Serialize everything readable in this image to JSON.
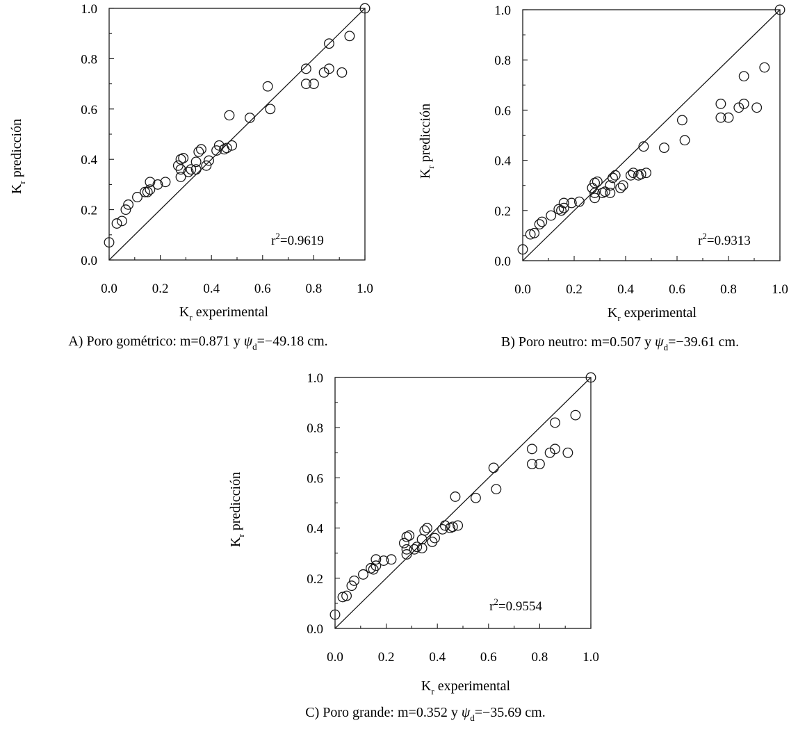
{
  "chart_data": [
    {
      "type": "scatter",
      "id": "A",
      "xlabel": {
        "main": "K",
        "sub": "r",
        "rest": " experimental"
      },
      "ylabel": {
        "main": "K",
        "sub": "r",
        "rest": " predicción"
      },
      "xlim": [
        0,
        1
      ],
      "ylim": [
        0,
        1
      ],
      "xticks": [
        "0.0",
        "0.2",
        "0.4",
        "0.6",
        "0.8",
        "1.0"
      ],
      "yticks": [
        "0.0",
        "0.2",
        "0.4",
        "0.6",
        "0.8",
        "1.0"
      ],
      "reference_line": "y = x",
      "annotation": {
        "pre": "r",
        "sup": "2",
        "post": "=0.9619"
      },
      "caption": {
        "pre": "A) Poro gométrico: m=0.871 y ",
        "symbol": "ψ",
        "sub": "d",
        "post": "=−49.18 cm."
      },
      "points": [
        [
          0.0,
          0.07
        ],
        [
          0.03,
          0.145
        ],
        [
          0.05,
          0.155
        ],
        [
          0.065,
          0.2
        ],
        [
          0.075,
          0.22
        ],
        [
          0.11,
          0.25
        ],
        [
          0.14,
          0.27
        ],
        [
          0.15,
          0.27
        ],
        [
          0.16,
          0.28
        ],
        [
          0.16,
          0.31
        ],
        [
          0.19,
          0.3
        ],
        [
          0.22,
          0.31
        ],
        [
          0.27,
          0.375
        ],
        [
          0.28,
          0.33
        ],
        [
          0.28,
          0.36
        ],
        [
          0.28,
          0.4
        ],
        [
          0.29,
          0.405
        ],
        [
          0.31,
          0.35
        ],
        [
          0.32,
          0.36
        ],
        [
          0.34,
          0.36
        ],
        [
          0.34,
          0.39
        ],
        [
          0.35,
          0.43
        ],
        [
          0.36,
          0.44
        ],
        [
          0.38,
          0.375
        ],
        [
          0.39,
          0.395
        ],
        [
          0.42,
          0.435
        ],
        [
          0.43,
          0.455
        ],
        [
          0.45,
          0.44
        ],
        [
          0.46,
          0.445
        ],
        [
          0.47,
          0.575
        ],
        [
          0.48,
          0.455
        ],
        [
          0.55,
          0.565
        ],
        [
          0.62,
          0.69
        ],
        [
          0.63,
          0.6
        ],
        [
          0.77,
          0.7
        ],
        [
          0.77,
          0.76
        ],
        [
          0.8,
          0.7
        ],
        [
          0.84,
          0.745
        ],
        [
          0.86,
          0.76
        ],
        [
          0.86,
          0.86
        ],
        [
          0.91,
          0.745
        ],
        [
          0.94,
          0.89
        ],
        [
          1.0,
          1.0
        ]
      ]
    },
    {
      "type": "scatter",
      "id": "B",
      "xlabel": {
        "main": "K",
        "sub": "r",
        "rest": " experimental"
      },
      "ylabel": {
        "main": "K",
        "sub": "r",
        "rest": " predicción"
      },
      "xlim": [
        0,
        1
      ],
      "ylim": [
        0,
        1
      ],
      "xticks": [
        "0.0",
        "0.2",
        "0.4",
        "0.6",
        "0.8",
        "1.0"
      ],
      "yticks": [
        "0.0",
        "0.2",
        "0.4",
        "0.6",
        "0.8",
        "1.0"
      ],
      "reference_line": "y = x",
      "annotation": {
        "pre": "r",
        "sup": "2",
        "post": "=0.9313"
      },
      "caption": {
        "pre": "B) Poro neutro: m=0.507 y ",
        "symbol": "ψ",
        "sub": "d",
        "post": "=−39.61 cm."
      },
      "points": [
        [
          0.0,
          0.045
        ],
        [
          0.03,
          0.105
        ],
        [
          0.045,
          0.11
        ],
        [
          0.065,
          0.145
        ],
        [
          0.075,
          0.155
        ],
        [
          0.11,
          0.18
        ],
        [
          0.14,
          0.205
        ],
        [
          0.15,
          0.2
        ],
        [
          0.16,
          0.23
        ],
        [
          0.16,
          0.21
        ],
        [
          0.19,
          0.23
        ],
        [
          0.22,
          0.235
        ],
        [
          0.27,
          0.29
        ],
        [
          0.28,
          0.25
        ],
        [
          0.28,
          0.27
        ],
        [
          0.28,
          0.31
        ],
        [
          0.29,
          0.315
        ],
        [
          0.31,
          0.27
        ],
        [
          0.32,
          0.275
        ],
        [
          0.34,
          0.27
        ],
        [
          0.34,
          0.3
        ],
        [
          0.35,
          0.33
        ],
        [
          0.36,
          0.34
        ],
        [
          0.38,
          0.29
        ],
        [
          0.39,
          0.3
        ],
        [
          0.42,
          0.34
        ],
        [
          0.43,
          0.35
        ],
        [
          0.45,
          0.34
        ],
        [
          0.46,
          0.345
        ],
        [
          0.47,
          0.455
        ],
        [
          0.48,
          0.35
        ],
        [
          0.55,
          0.45
        ],
        [
          0.62,
          0.56
        ],
        [
          0.63,
          0.48
        ],
        [
          0.77,
          0.57
        ],
        [
          0.77,
          0.625
        ],
        [
          0.8,
          0.57
        ],
        [
          0.84,
          0.61
        ],
        [
          0.86,
          0.625
        ],
        [
          0.86,
          0.735
        ],
        [
          0.91,
          0.61
        ],
        [
          0.94,
          0.77
        ],
        [
          1.0,
          1.0
        ]
      ]
    },
    {
      "type": "scatter",
      "id": "C",
      "xlabel": {
        "main": "K",
        "sub": "r",
        "rest": " experimental"
      },
      "ylabel": {
        "main": "K",
        "sub": "r",
        "rest": " predicción"
      },
      "xlim": [
        0,
        1
      ],
      "ylim": [
        0,
        1
      ],
      "xticks": [
        "0.0",
        "0.2",
        "0.4",
        "0.6",
        "0.8",
        "1.0"
      ],
      "yticks": [
        "0.0",
        "0.2",
        "0.4",
        "0.6",
        "0.8",
        "1.0"
      ],
      "reference_line": "y = x",
      "annotation": {
        "pre": "r",
        "sup": "2",
        "post": "=0.9554"
      },
      "caption": {
        "pre": "C) Poro grande: m=0.352 y ",
        "symbol": "ψ",
        "sub": "d",
        "post": "=−35.69 cm."
      },
      "points": [
        [
          0.0,
          0.055
        ],
        [
          0.03,
          0.125
        ],
        [
          0.045,
          0.13
        ],
        [
          0.065,
          0.17
        ],
        [
          0.075,
          0.19
        ],
        [
          0.11,
          0.215
        ],
        [
          0.14,
          0.24
        ],
        [
          0.15,
          0.235
        ],
        [
          0.16,
          0.275
        ],
        [
          0.16,
          0.25
        ],
        [
          0.19,
          0.27
        ],
        [
          0.22,
          0.275
        ],
        [
          0.27,
          0.34
        ],
        [
          0.28,
          0.295
        ],
        [
          0.28,
          0.315
        ],
        [
          0.28,
          0.365
        ],
        [
          0.29,
          0.37
        ],
        [
          0.31,
          0.315
        ],
        [
          0.32,
          0.325
        ],
        [
          0.34,
          0.32
        ],
        [
          0.34,
          0.355
        ],
        [
          0.35,
          0.39
        ],
        [
          0.36,
          0.4
        ],
        [
          0.38,
          0.345
        ],
        [
          0.39,
          0.36
        ],
        [
          0.42,
          0.395
        ],
        [
          0.43,
          0.41
        ],
        [
          0.45,
          0.4
        ],
        [
          0.46,
          0.405
        ],
        [
          0.47,
          0.525
        ],
        [
          0.48,
          0.41
        ],
        [
          0.55,
          0.52
        ],
        [
          0.62,
          0.64
        ],
        [
          0.63,
          0.555
        ],
        [
          0.77,
          0.655
        ],
        [
          0.77,
          0.715
        ],
        [
          0.8,
          0.655
        ],
        [
          0.84,
          0.7
        ],
        [
          0.86,
          0.715
        ],
        [
          0.86,
          0.82
        ],
        [
          0.91,
          0.7
        ],
        [
          0.94,
          0.85
        ],
        [
          1.0,
          1.0
        ]
      ]
    }
  ]
}
